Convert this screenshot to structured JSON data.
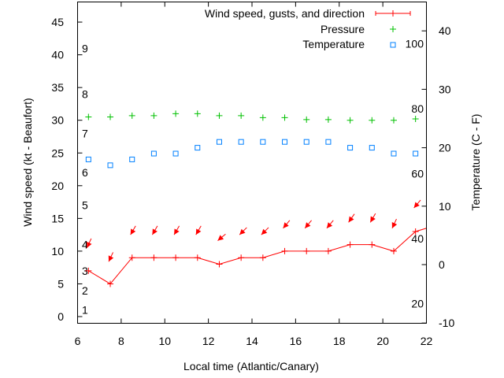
{
  "chart_data": {
    "type": "line",
    "xlabel": "Local time (Atlantic/Canary)",
    "ylabel": "Wind speed (kt - Beaufort)",
    "y2label": "Temperature (C - F)",
    "xlim": [
      6,
      22
    ],
    "ylim": [
      -1,
      48
    ],
    "y2lim": [
      -10,
      44.4
    ],
    "xticks": [
      "6",
      "8",
      "10",
      "12",
      "14",
      "16",
      "18",
      "20",
      "22"
    ],
    "yticks": [
      "0",
      "5",
      "10",
      "15",
      "20",
      "25",
      "30",
      "35",
      "40",
      "45"
    ],
    "y2ticks": [
      "-10",
      "0",
      "10",
      "20",
      "30",
      "40"
    ],
    "beaufort_labels": [
      {
        "label": "1",
        "kt": 1
      },
      {
        "label": "2",
        "kt": 4
      },
      {
        "label": "3",
        "kt": 7
      },
      {
        "label": "4",
        "kt": 11
      },
      {
        "label": "5",
        "kt": 17
      },
      {
        "label": "6",
        "kt": 22
      },
      {
        "label": "7",
        "kt": 28
      },
      {
        "label": "8",
        "kt": 34
      },
      {
        "label": "9",
        "kt": 41
      }
    ],
    "fahrenheit_labels": [
      {
        "label": "20",
        "f": 20
      },
      {
        "label": "40",
        "f": 40
      },
      {
        "label": "60",
        "f": 60
      },
      {
        "label": "80",
        "f": 80
      },
      {
        "label": "100",
        "f": 100
      }
    ],
    "legend": {
      "position": "top-right",
      "entries": [
        "Wind speed, gusts, and direction",
        "Pressure",
        "Temperature"
      ]
    },
    "x": [
      6.5,
      7.5,
      8.5,
      9.5,
      10.5,
      11.5,
      12.5,
      13.5,
      14.5,
      15.5,
      16.5,
      17.5,
      18.5,
      19.5,
      20.5,
      21.5,
      22.5
    ],
    "series": [
      {
        "name": "Wind speed, gusts, and direction",
        "axis": "y",
        "color": "#ff0000",
        "values": [
          7,
          5,
          9,
          9,
          9,
          9,
          8,
          9,
          9,
          10,
          10,
          10,
          11,
          11,
          10,
          13,
          14
        ],
        "gusts": [
          10.5,
          8.4,
          12.5,
          12.5,
          12.5,
          12.5,
          11.6,
          12.5,
          12.5,
          13.5,
          13.5,
          13.5,
          14.4,
          14.4,
          13.5,
          16.6,
          null
        ],
        "direction_deg": [
          25,
          25,
          30,
          30,
          30,
          30,
          50,
          45,
          45,
          40,
          40,
          40,
          35,
          30,
          25,
          40,
          null
        ]
      },
      {
        "name": "Pressure",
        "axis": "y",
        "color": "#00c000",
        "values": [
          30.5,
          30.5,
          30.7,
          30.7,
          31.0,
          31.0,
          30.7,
          30.7,
          30.4,
          30.4,
          30.1,
          30.1,
          30.0,
          30.0,
          30.0,
          30.2,
          null
        ]
      },
      {
        "name": "Temperature",
        "axis": "y2",
        "color": "#0080ff",
        "values": [
          18,
          17,
          18,
          19,
          19,
          20,
          21,
          21,
          21,
          21,
          21,
          21,
          20,
          20,
          19,
          19,
          null
        ]
      }
    ]
  }
}
